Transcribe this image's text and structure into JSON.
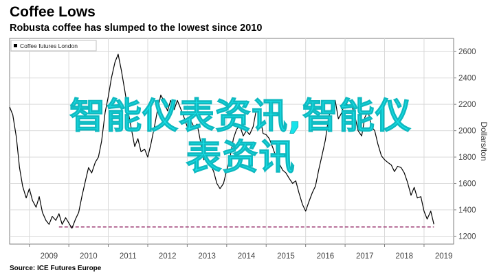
{
  "header": {
    "title": "Coffee Lows",
    "subtitle": "Robusta coffee has slumped to the lowest since 2010"
  },
  "source": "Source: ICE Futures Europe",
  "watermark": {
    "line1": "智能仪表资讯,智能仪",
    "line2": "表资讯"
  },
  "colors": {
    "series": "#000000",
    "reference_line": "#a0457a",
    "grid": "#d9d9d9",
    "watermark": "#17e3ea",
    "axis_text": "#444444"
  },
  "chart_data": {
    "type": "line",
    "title": "Coffee Lows",
    "subtitle": "Robusta coffee has slumped to the lowest since 2010",
    "xlabel": "",
    "ylabel": "Dollars/ton",
    "y_axis_position": "right",
    "ylim": [
      1140,
      2700
    ],
    "xlim": [
      2008.5,
      2019.75
    ],
    "x_ticks": [
      "2009",
      "2010",
      "2011",
      "2012",
      "2013",
      "2014",
      "2015",
      "2016",
      "2017",
      "2018",
      "2019"
    ],
    "y_ticks": [
      1200,
      1400,
      1600,
      1800,
      2000,
      2200,
      2400,
      2600
    ],
    "grid": true,
    "legend": {
      "position": "top-left",
      "entries": [
        "Coffee futures London"
      ]
    },
    "series": [
      {
        "name": "Coffee futures London",
        "x": [
          2008.5,
          2008.58,
          2008.67,
          2008.75,
          2008.83,
          2008.92,
          2009.0,
          2009.08,
          2009.17,
          2009.25,
          2009.33,
          2009.42,
          2009.5,
          2009.58,
          2009.67,
          2009.75,
          2009.83,
          2009.92,
          2010.0,
          2010.08,
          2010.17,
          2010.25,
          2010.33,
          2010.42,
          2010.5,
          2010.58,
          2010.67,
          2010.75,
          2010.83,
          2010.92,
          2011.0,
          2011.08,
          2011.17,
          2011.25,
          2011.33,
          2011.42,
          2011.5,
          2011.58,
          2011.67,
          2011.75,
          2011.83,
          2011.92,
          2012.0,
          2012.08,
          2012.17,
          2012.25,
          2012.33,
          2012.42,
          2012.5,
          2012.58,
          2012.67,
          2012.75,
          2012.83,
          2012.92,
          2013.0,
          2013.08,
          2013.17,
          2013.25,
          2013.33,
          2013.42,
          2013.5,
          2013.58,
          2013.67,
          2013.75,
          2013.83,
          2013.92,
          2014.0,
          2014.08,
          2014.17,
          2014.25,
          2014.33,
          2014.42,
          2014.5,
          2014.58,
          2014.67,
          2014.75,
          2014.83,
          2014.92,
          2015.0,
          2015.08,
          2015.17,
          2015.25,
          2015.33,
          2015.42,
          2015.5,
          2015.58,
          2015.67,
          2015.75,
          2015.83,
          2015.92,
          2016.0,
          2016.08,
          2016.17,
          2016.25,
          2016.33,
          2016.42,
          2016.5,
          2016.58,
          2016.67,
          2016.75,
          2016.83,
          2016.92,
          2017.0,
          2017.08,
          2017.17,
          2017.25,
          2017.33,
          2017.42,
          2017.5,
          2017.58,
          2017.67,
          2017.75,
          2017.83,
          2017.92,
          2018.0,
          2018.08,
          2018.17,
          2018.25,
          2018.33,
          2018.42,
          2018.5,
          2018.58,
          2018.67,
          2018.75,
          2018.83,
          2018.92,
          2019.0,
          2019.08,
          2019.17,
          2019.25
        ],
        "values": [
          2180,
          2120,
          1950,
          1720,
          1580,
          1490,
          1560,
          1470,
          1420,
          1500,
          1380,
          1320,
          1290,
          1350,
          1320,
          1370,
          1290,
          1340,
          1300,
          1260,
          1330,
          1380,
          1500,
          1620,
          1720,
          1680,
          1760,
          1800,
          1920,
          2140,
          2260,
          2400,
          2520,
          2580,
          2460,
          2300,
          2150,
          2020,
          1880,
          1940,
          1840,
          1860,
          1800,
          1900,
          2030,
          2160,
          2270,
          2220,
          2150,
          2230,
          2160,
          2230,
          2170,
          2100,
          2030,
          2080,
          2030,
          2050,
          1930,
          1780,
          1800,
          1750,
          1690,
          1600,
          1560,
          1600,
          1700,
          1790,
          1940,
          2010,
          2040,
          1960,
          2000,
          1970,
          2030,
          2160,
          2130,
          1980,
          1970,
          1940,
          1870,
          1800,
          1750,
          1700,
          1680,
          1640,
          1600,
          1620,
          1530,
          1440,
          1390,
          1460,
          1530,
          1580,
          1700,
          1820,
          1930,
          2100,
          2180,
          2230,
          2090,
          2140,
          2230,
          2180,
          2190,
          2110,
          2000,
          1960,
          2100,
          2150,
          2030,
          2000,
          1900,
          1810,
          1780,
          1760,
          1740,
          1690,
          1730,
          1720,
          1680,
          1610,
          1510,
          1570,
          1490,
          1500,
          1390,
          1330,
          1390,
          1290
        ]
      }
    ],
    "reference_line": {
      "y": 1270,
      "style": "dashed",
      "from_x": 2009.75,
      "to_x": 2019.25
    }
  }
}
